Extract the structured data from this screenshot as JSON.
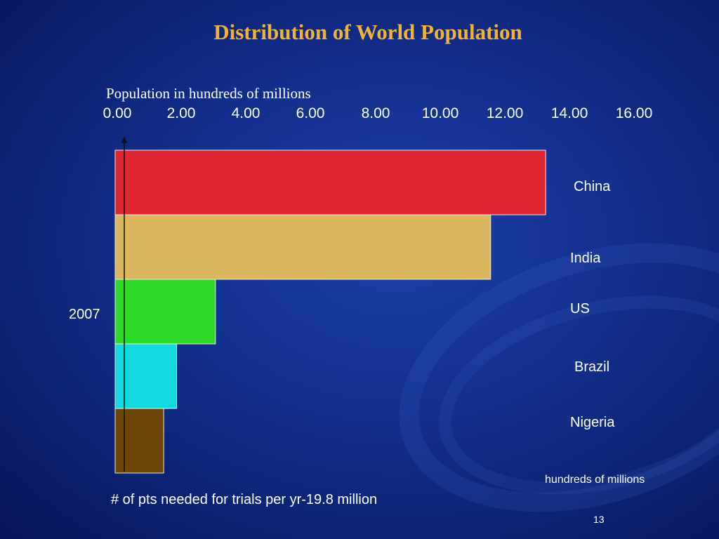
{
  "slide": {
    "title": "Distribution of World Population",
    "page_number": "13"
  },
  "chart_data": {
    "type": "bar",
    "orientation": "horizontal",
    "title": "Distribution of World Population",
    "top_axis_label": "Population in hundreds of millions",
    "unit_label": "hundreds of millions",
    "xlim": [
      0,
      16
    ],
    "ticks": [
      "0.00",
      "2.00",
      "4.00",
      "6.00",
      "8.00",
      "10.00",
      "12.00",
      "14.00",
      "16.00"
    ],
    "year_label": "2007",
    "note": "# of pts needed for trials per yr-19.8 million",
    "categories": [
      "China",
      "India",
      "US",
      "Brazil",
      "Nigeria"
    ],
    "values": [
      13.3,
      11.6,
      3.1,
      1.9,
      1.5
    ],
    "colors": [
      "#e02633",
      "#dcb65e",
      "#2edb26",
      "#12d9e0",
      "#6b4606"
    ],
    "grid": false,
    "legend": "none"
  }
}
